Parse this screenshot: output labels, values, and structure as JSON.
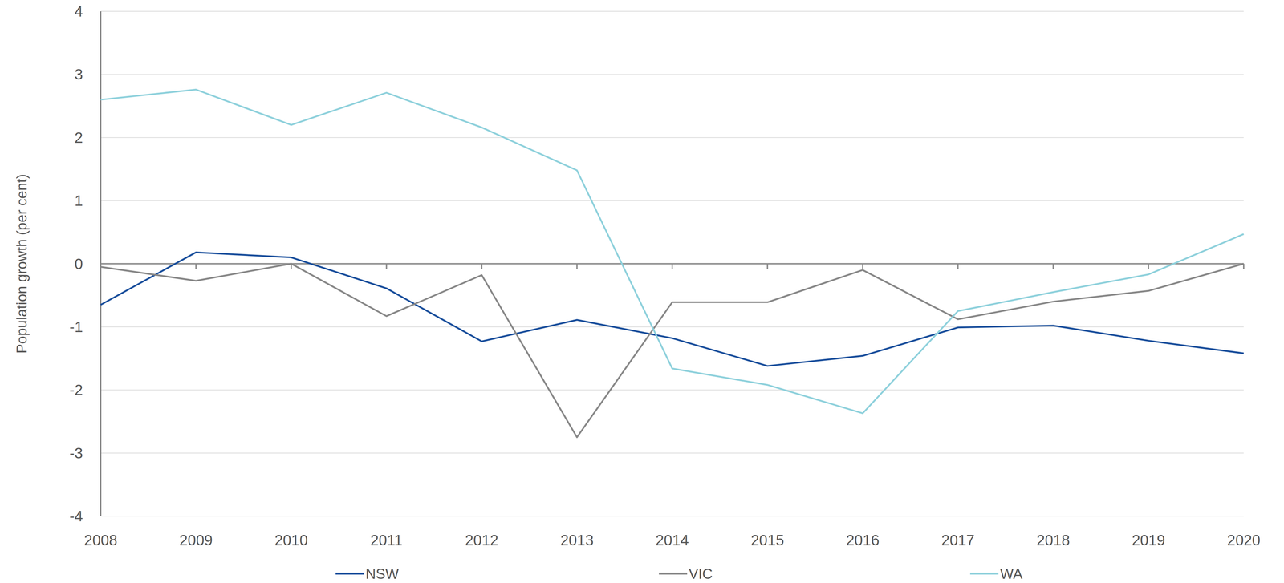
{
  "chart_data": {
    "type": "line",
    "y_label": "Population growth (per cent)",
    "x": [
      2008,
      2009,
      2010,
      2011,
      2012,
      2013,
      2014,
      2015,
      2016,
      2017,
      2018,
      2019,
      2020
    ],
    "xlim": [
      2008,
      2020
    ],
    "xticks": [
      2008,
      2009,
      2010,
      2011,
      2012,
      2013,
      2014,
      2015,
      2016,
      2017,
      2018,
      2019,
      2020
    ],
    "ylim": [
      -4,
      4
    ],
    "yticks": [
      -4,
      -3,
      -2,
      -1,
      0,
      1,
      2,
      3,
      4
    ],
    "grid": true,
    "legend": "bottom",
    "series": [
      {
        "name": "NSW",
        "color": "#1a4f9c",
        "values": [
          -0.65,
          0.18,
          0.1,
          -0.39,
          -1.23,
          -0.89,
          -1.18,
          -1.62,
          -1.46,
          -1.01,
          -0.98,
          -1.22,
          -1.42
        ]
      },
      {
        "name": "VIC",
        "color": "#888888",
        "values": [
          -0.05,
          -0.27,
          0,
          -0.83,
          -0.18,
          -2.75,
          -0.61,
          -0.61,
          -0.1,
          -0.88,
          -0.6,
          -0.43,
          0
        ]
      },
      {
        "name": "WA",
        "color": "#8fd1dc",
        "values": [
          2.6,
          2.76,
          2.2,
          2.71,
          2.16,
          1.48,
          -1.66,
          -1.92,
          -2.37,
          -0.75,
          -0.45,
          -0.17,
          0.47
        ]
      }
    ]
  }
}
